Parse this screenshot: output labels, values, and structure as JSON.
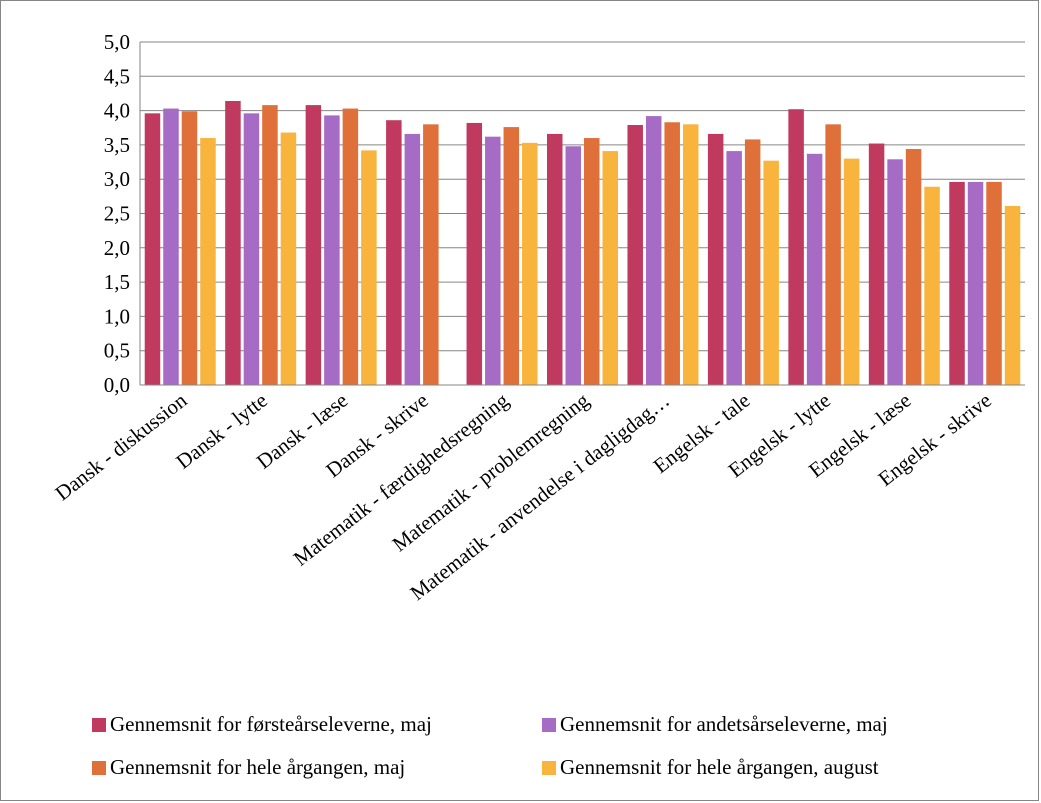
{
  "chart_data": {
    "type": "bar",
    "categories": [
      "Dansk - diskussion",
      "Dansk - lytte",
      "Dansk - læse",
      "Dansk - skrive",
      "Matematik - færdighedsregning",
      "Matematik - problemregning",
      "Matematik - anvendelse i dagligdag…",
      "Engelsk - tale",
      "Engelsk - lytte",
      "Engelsk - læse",
      "Engelsk - skrive"
    ],
    "series": [
      {
        "name": "Gennemsnit for førsteårseleverne, maj",
        "color": "#C0395F",
        "values": [
          3.96,
          4.14,
          4.08,
          3.86,
          3.82,
          3.66,
          3.79,
          3.66,
          4.02,
          3.52,
          2.96
        ]
      },
      {
        "name": "Gennemsnit for andetsårseleverne, maj",
        "color": "#A66BC4",
        "values": [
          4.03,
          3.96,
          3.93,
          3.66,
          3.62,
          3.48,
          3.92,
          3.41,
          3.37,
          3.29,
          2.96
        ]
      },
      {
        "name": "Gennemsnit for hele årgangen, maj",
        "color": "#E0703A",
        "values": [
          3.99,
          4.08,
          4.03,
          3.8,
          3.76,
          3.6,
          3.83,
          3.58,
          3.8,
          3.44,
          2.96
        ]
      },
      {
        "name": "Gennemsnit for hele årgangen, august",
        "color": "#F9B43E",
        "values": [
          3.6,
          3.68,
          3.42,
          null,
          3.53,
          3.41,
          3.8,
          3.27,
          3.3,
          2.89,
          2.61
        ]
      }
    ],
    "y_ticks": [
      "0,0",
      "0,5",
      "1,0",
      "1,5",
      "2,0",
      "2,5",
      "3,0",
      "3,5",
      "4,0",
      "4,5",
      "5,0"
    ],
    "ylim": [
      0,
      5
    ],
    "y_step": 0.5,
    "grid": true,
    "legend_position": "bottom",
    "title": "",
    "xlabel": "",
    "ylabel": ""
  }
}
